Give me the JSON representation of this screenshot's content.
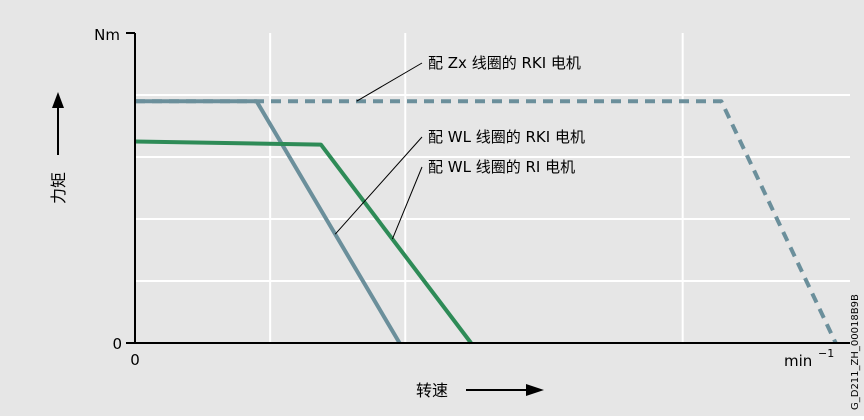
{
  "chart_data": {
    "type": "line",
    "title": "",
    "xlabel": "转速",
    "ylabel": "力矩",
    "y_unit": "Nm",
    "x_unit": "min",
    "x_unit_exp": "−1",
    "x_tick_labels": [
      "0"
    ],
    "y_tick_labels": [
      "0"
    ],
    "xlim": [
      0,
      100
    ],
    "ylim": [
      0,
      100
    ],
    "grid": true,
    "legend": "annotations",
    "colors": {
      "background": "#e6e6e6",
      "grid": "#ffffff",
      "axis": "#000000",
      "teal": "#6b8f9b",
      "green": "#2e8b57"
    },
    "series": [
      {
        "name": "配 Zx 线圈的 RKI 电机",
        "style": "dashed",
        "color": "#6b8f9b",
        "points": [
          [
            0,
            78
          ],
          [
            82,
            78
          ],
          [
            98,
            0
          ]
        ]
      },
      {
        "name": "配 WL 线圈的 RKI 电机",
        "style": "solid",
        "color": "#6b8f9b",
        "points": [
          [
            0,
            78
          ],
          [
            17,
            78
          ],
          [
            37,
            0
          ]
        ]
      },
      {
        "name": "配 WL 线圈的 RI 电机",
        "style": "solid",
        "color": "#2e8b57",
        "points": [
          [
            0,
            65
          ],
          [
            26,
            64
          ],
          [
            47,
            0
          ]
        ]
      }
    ],
    "annotations": [
      {
        "text": "配 Zx 线圈的 RKI 电机",
        "series": 0,
        "at_x": 31
      },
      {
        "text": "配 WL 线圈的 RKI 电机",
        "series": 1,
        "at_x": 28
      },
      {
        "text": "配 WL 线圈的 RI 电机",
        "series": 2,
        "at_x": 36
      }
    ],
    "side_code": "G_D211_ZH_00018B9B"
  }
}
